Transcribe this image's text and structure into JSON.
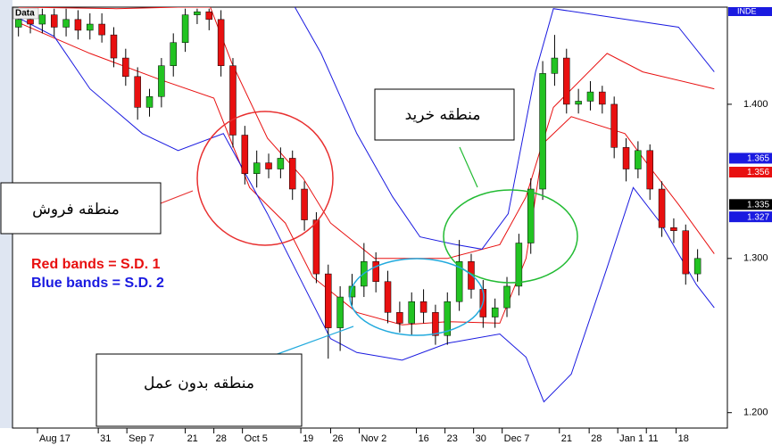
{
  "chart_data": {
    "type": "candlestick",
    "frame_label": "Data",
    "index_label": "INDE",
    "x": [
      0,
      1,
      2,
      3,
      4,
      5,
      6,
      7,
      8,
      9,
      10,
      11,
      12,
      13,
      14,
      15,
      16,
      17,
      18,
      19,
      20,
      21,
      22,
      23,
      24,
      25,
      26,
      27,
      28,
      29,
      30,
      31,
      32,
      33,
      34,
      35,
      36,
      37,
      38,
      39,
      40,
      41,
      42,
      43,
      44,
      45,
      46,
      47,
      48,
      49,
      50,
      51,
      52,
      53,
      54,
      55,
      56,
      57
    ],
    "open": [
      1.45,
      1.455,
      1.452,
      1.458,
      1.45,
      1.455,
      1.448,
      1.452,
      1.445,
      1.43,
      1.418,
      1.398,
      1.405,
      1.425,
      1.44,
      1.458,
      1.46,
      1.455,
      1.425,
      1.38,
      1.355,
      1.362,
      1.358,
      1.365,
      1.345,
      1.325,
      1.29,
      1.255,
      1.275,
      1.282,
      1.298,
      1.285,
      1.265,
      1.258,
      1.272,
      1.265,
      1.25,
      1.272,
      1.298,
      1.28,
      1.262,
      1.268,
      1.282,
      1.31,
      1.345,
      1.42,
      1.43,
      1.4,
      1.402,
      1.408,
      1.4,
      1.372,
      1.358,
      1.37,
      1.345,
      1.32,
      1.318,
      1.29
    ],
    "high": [
      1.462,
      1.461,
      1.462,
      1.462,
      1.462,
      1.461,
      1.459,
      1.459,
      1.45,
      1.436,
      1.424,
      1.41,
      1.43,
      1.446,
      1.462,
      1.462,
      1.462,
      1.461,
      1.43,
      1.386,
      1.37,
      1.368,
      1.372,
      1.37,
      1.35,
      1.33,
      1.296,
      1.282,
      1.29,
      1.31,
      1.304,
      1.292,
      1.272,
      1.278,
      1.28,
      1.27,
      1.278,
      1.312,
      1.303,
      1.286,
      1.274,
      1.288,
      1.316,
      1.352,
      1.428,
      1.445,
      1.436,
      1.41,
      1.415,
      1.412,
      1.405,
      1.378,
      1.376,
      1.374,
      1.35,
      1.326,
      1.322,
      1.306
    ],
    "low": [
      1.444,
      1.446,
      1.446,
      1.444,
      1.444,
      1.442,
      1.442,
      1.44,
      1.424,
      1.412,
      1.39,
      1.392,
      1.398,
      1.418,
      1.434,
      1.452,
      1.448,
      1.418,
      1.372,
      1.348,
      1.346,
      1.352,
      1.352,
      1.338,
      1.318,
      1.284,
      1.235,
      1.24,
      1.268,
      1.275,
      1.278,
      1.258,
      1.252,
      1.25,
      1.258,
      1.244,
      1.244,
      1.266,
      1.274,
      1.255,
      1.255,
      1.262,
      1.276,
      1.303,
      1.338,
      1.412,
      1.394,
      1.394,
      1.396,
      1.394,
      1.365,
      1.35,
      1.352,
      1.338,
      1.314,
      1.31,
      1.283,
      1.285
    ],
    "close": [
      1.455,
      1.452,
      1.458,
      1.45,
      1.455,
      1.448,
      1.452,
      1.445,
      1.43,
      1.418,
      1.398,
      1.405,
      1.425,
      1.44,
      1.458,
      1.46,
      1.455,
      1.425,
      1.38,
      1.355,
      1.362,
      1.358,
      1.365,
      1.345,
      1.325,
      1.29,
      1.255,
      1.275,
      1.282,
      1.298,
      1.285,
      1.265,
      1.258,
      1.272,
      1.265,
      1.25,
      1.272,
      1.298,
      1.28,
      1.262,
      1.268,
      1.282,
      1.31,
      1.345,
      1.42,
      1.43,
      1.4,
      1.402,
      1.408,
      1.4,
      1.372,
      1.358,
      1.37,
      1.345,
      1.32,
      1.318,
      1.29,
      1.3
    ],
    "up_color": "#22c322",
    "down_color": "#e81010",
    "series": [
      {
        "color": "#e81010",
        "x": [
          0.0,
          8.2,
          13.4,
          16.1,
          17.9,
          20.9,
          23.9,
          26.2,
          29.9,
          36.0,
          40.4,
          42.6,
          44.9,
          49.4,
          52.4,
          58.4
        ],
        "values": [
          1.463,
          1.462,
          1.463,
          1.463,
          1.427,
          1.378,
          1.352,
          1.323,
          1.3,
          1.3,
          1.309,
          1.34,
          1.398,
          1.433,
          1.421,
          1.41
        ]
      },
      {
        "color": "#e81010",
        "x": [
          0.0,
          6.0,
          11.9,
          16.4,
          19.4,
          22.4,
          24.7,
          28.4,
          32.2,
          36.0,
          40.4,
          42.6,
          44.1,
          46.4,
          50.9,
          53.1,
          55.4,
          58.4
        ],
        "values": [
          1.453,
          1.433,
          1.416,
          1.404,
          1.346,
          1.323,
          1.288,
          1.265,
          1.257,
          1.259,
          1.258,
          1.3,
          1.375,
          1.392,
          1.381,
          1.358,
          1.335,
          1.303
        ]
      },
      {
        "color": "#1a1ae0",
        "x": [
          23.2,
          25.4,
          28.4,
          31.4,
          33.7,
          36.7,
          38.9,
          41.1,
          43.4,
          44.9,
          55.4,
          58.4
        ],
        "values": [
          1.463,
          1.433,
          1.381,
          1.34,
          1.314,
          1.309,
          1.306,
          1.329,
          1.421,
          1.462,
          1.45,
          1.421
        ]
      },
      {
        "color": "#1a1ae0",
        "x": [
          0.0,
          3.0,
          6.0,
          10.4,
          13.4,
          17.2,
          20.9,
          23.9,
          26.2,
          28.4,
          32.2,
          36.0,
          40.4,
          42.6,
          44.1,
          46.4,
          49.4,
          51.6,
          53.9,
          56.9,
          58.4
        ],
        "values": [
          1.456,
          1.444,
          1.41,
          1.381,
          1.37,
          1.381,
          1.329,
          1.283,
          1.248,
          1.239,
          1.234,
          1.245,
          1.251,
          1.236,
          1.207,
          1.225,
          1.294,
          1.346,
          1.323,
          1.283,
          1.268
        ]
      }
    ],
    "xlim": [
      -0.5,
      59.5
    ],
    "xticks": [
      {
        "value": 1.6,
        "label": "Aug 17"
      },
      {
        "value": 6.7,
        "label": "31"
      },
      {
        "value": 9.1,
        "label": "Sep 7"
      },
      {
        "value": 14.0,
        "label": "21"
      },
      {
        "value": 16.4,
        "label": "28"
      },
      {
        "value": 18.8,
        "label": "Oct 5"
      },
      {
        "value": 23.7,
        "label": "19"
      },
      {
        "value": 26.2,
        "label": "26"
      },
      {
        "value": 28.6,
        "label": "Nov 2"
      },
      {
        "value": 33.4,
        "label": "16"
      },
      {
        "value": 35.8,
        "label": "23"
      },
      {
        "value": 38.2,
        "label": "30"
      },
      {
        "value": 40.6,
        "label": "Dec 7"
      },
      {
        "value": 45.4,
        "label": "21"
      },
      {
        "value": 47.9,
        "label": "28"
      },
      {
        "value": 50.3,
        "label": "Jan 1"
      },
      {
        "value": 52.7,
        "label": "11"
      },
      {
        "value": 55.2,
        "label": "18"
      }
    ],
    "ylim": [
      1.19,
      1.463
    ],
    "yticks": [
      {
        "value": 1.2,
        "label": "1.200"
      },
      {
        "value": 1.3,
        "label": "1.300"
      },
      {
        "value": 1.4,
        "label": "1.400"
      }
    ],
    "price_tags": [
      {
        "value": 1.365,
        "color": "#1a1ae0"
      },
      {
        "value": 1.356,
        "color": "#e81010"
      },
      {
        "value": 1.335,
        "color": "#000000"
      },
      {
        "value": 1.327,
        "color": "#1a1ae0"
      }
    ],
    "annotations": {
      "sell_zone": "منطقه فروش",
      "buy_zone": "منطقه خرید",
      "no_action_zone": "منطقه بدون عمل",
      "red_bands": "Red bands = S.D. 1",
      "blue_bands": "Blue bands = S.D. 2"
    }
  }
}
